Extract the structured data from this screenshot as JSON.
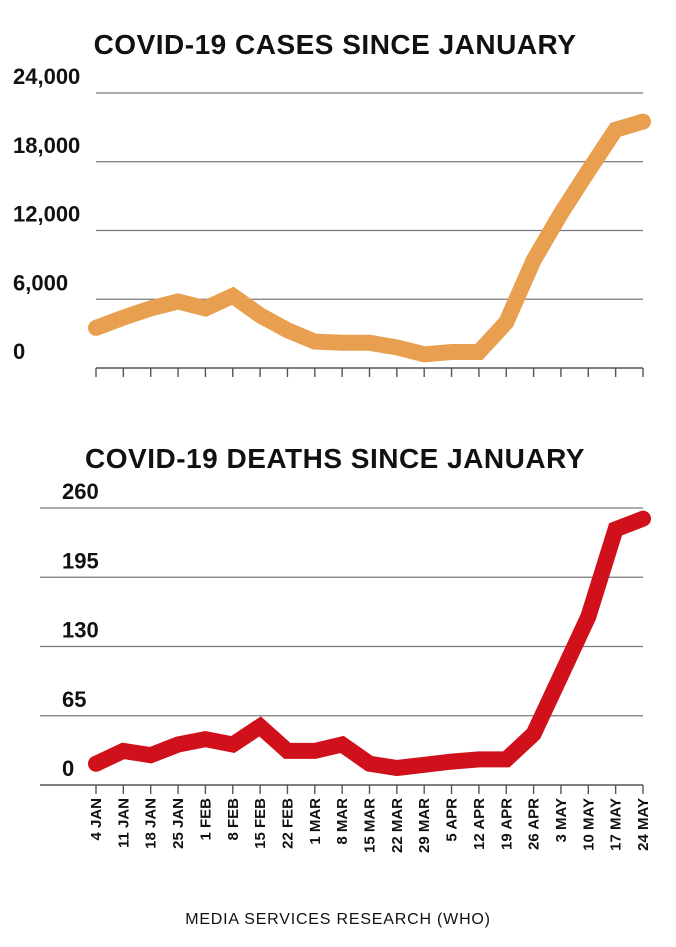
{
  "chart_data": [
    {
      "type": "line",
      "title": "COVID-19 CASES SINCE JANUARY",
      "xlabel": "",
      "ylabel": "",
      "ylim": [
        0,
        24000
      ],
      "yticks": [
        0,
        6000,
        12000,
        18000,
        24000
      ],
      "ytick_labels": [
        "0",
        "6,000",
        "12,000",
        "18,000",
        "24,000"
      ],
      "grid": "horizontal",
      "categories": [
        "4 JAN",
        "11 JAN",
        "18 JAN",
        "25 JAN",
        "1 FEB",
        "8 FEB",
        "15 FEB",
        "22 FEB",
        "1 MAR",
        "8 MAR",
        "15 MAR",
        "22 MAR",
        "29 MAR",
        "5 APR",
        "12 APR",
        "19 APR",
        "26 APR",
        "3 MAY",
        "10 MAY",
        "17 MAY",
        "24 MAY"
      ],
      "series": [
        {
          "values": [
            3500,
            4400,
            5200,
            5800,
            5200,
            6300,
            4600,
            3300,
            2300,
            2200,
            2200,
            1800,
            1200,
            1400,
            1400,
            4000,
            9400,
            13500,
            17200,
            20800,
            21500
          ],
          "color": "#e8a050"
        }
      ],
      "x_axis_visible": false
    },
    {
      "type": "line",
      "title": "COVID-19 DEATHS SINCE JANUARY",
      "xlabel": "",
      "ylabel": "",
      "ylim": [
        0,
        260
      ],
      "yticks": [
        0,
        65,
        130,
        195,
        260
      ],
      "ytick_labels": [
        "0",
        "65",
        "130",
        "195",
        "260"
      ],
      "grid": "horizontal",
      "categories": [
        "4 JAN",
        "11 JAN",
        "18 JAN",
        "25 JAN",
        "1 FEB",
        "8 FEB",
        "15 FEB",
        "22 FEB",
        "1 MAR",
        "8 MAR",
        "15 MAR",
        "22 MAR",
        "29 MAR",
        "5 APR",
        "12 APR",
        "19 APR",
        "26 APR",
        "3 MAY",
        "10 MAY",
        "17 MAY",
        "24 MAY"
      ],
      "series": [
        {
          "values": [
            20,
            32,
            28,
            38,
            43,
            38,
            55,
            32,
            32,
            38,
            20,
            16,
            19,
            22,
            24,
            24,
            48,
            103,
            158,
            240,
            250
          ],
          "color": "#d0111b"
        }
      ],
      "x_axis_visible": true
    }
  ],
  "source": "MEDIA SERVICES RESEARCH (WHO)"
}
